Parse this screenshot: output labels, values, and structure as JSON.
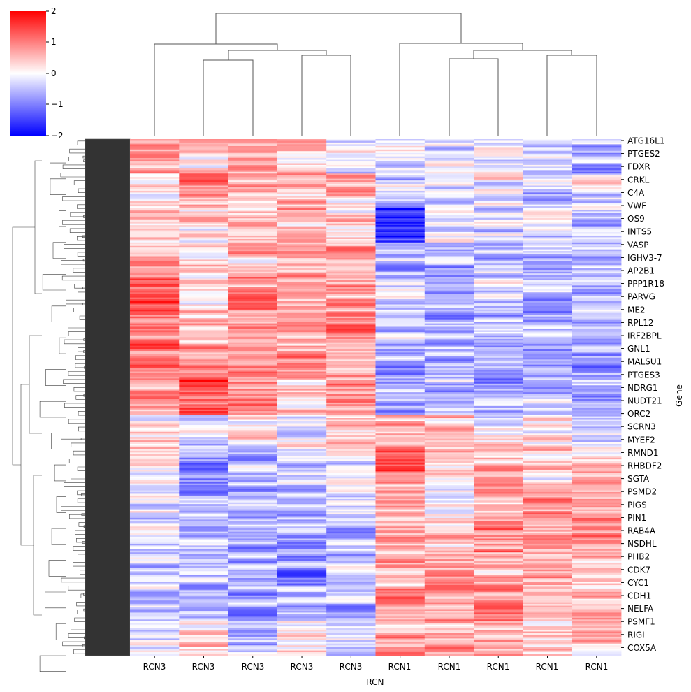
{
  "chart_data": {
    "type": "heatmap",
    "title": "",
    "xlabel": "RCN",
    "ylabel": "Gene",
    "columns": [
      "RCN3",
      "RCN3",
      "RCN3",
      "RCN3",
      "RCN3",
      "RCN1",
      "RCN1",
      "RCN1",
      "RCN1",
      "RCN1"
    ],
    "row_labels": [
      "ATG16L1",
      "PTGES2",
      "FDXR",
      "CRKL",
      "C4A",
      "VWF",
      "OS9",
      "INTS5",
      "VASP",
      "IGHV3-7",
      "AP2B1",
      "PPP1R18",
      "PARVG",
      "ME2",
      "RPL12",
      "IRF2BPL",
      "GNL1",
      "MALSU1",
      "PTGES3",
      "NDRG1",
      "NUDT21",
      "ORC2",
      "SCRN3",
      "MYEF2",
      "RMND1",
      "RHBDF2",
      "SGTA",
      "PSMD2",
      "PIGS",
      "PIN1",
      "RAB4A",
      "NSDHL",
      "PHB2",
      "CDK7",
      "CYC1",
      "CDH1",
      "NELFA",
      "PSMF1",
      "RIGI",
      "COX5A"
    ],
    "color_range": [
      -2,
      2
    ],
    "colormap": "bwr",
    "colorbar_ticks": [
      "2",
      "1",
      "0",
      "−1",
      "−2"
    ],
    "block_means": [
      [
        0.6,
        0.4,
        0.5,
        0.2,
        -0.2,
        -0.1,
        -0.3,
        -0.3,
        -0.4,
        -0.8
      ],
      [
        0.1,
        0.7,
        0.5,
        0.4,
        0.6,
        -0.3,
        -0.2,
        -0.1,
        -0.6,
        -0.2
      ],
      [
        0.4,
        0.3,
        0.4,
        0.6,
        0.5,
        -1.5,
        -0.3,
        -0.2,
        -0.4,
        -0.6
      ],
      [
        0.8,
        0.5,
        0.5,
        0.7,
        0.9,
        -0.5,
        -0.6,
        -0.5,
        -0.6,
        -0.7
      ],
      [
        1.2,
        0.4,
        0.8,
        0.6,
        0.7,
        -0.4,
        -0.5,
        -0.4,
        -0.5,
        -0.6
      ],
      [
        1.0,
        0.5,
        1.0,
        0.7,
        0.8,
        -0.5,
        -0.7,
        -0.6,
        -0.7,
        -0.6
      ],
      [
        1.0,
        0.7,
        0.9,
        0.8,
        0.7,
        -0.7,
        -0.5,
        -0.7,
        -0.8,
        -0.6
      ],
      [
        0.8,
        1.4,
        1.1,
        0.5,
        0.9,
        -0.6,
        -0.5,
        -0.6,
        -0.5,
        -0.5
      ],
      [
        0.3,
        -0.3,
        0.2,
        -0.2,
        0.4,
        0.8,
        0.3,
        0.1,
        0.0,
        -0.2
      ],
      [
        0.2,
        -0.8,
        -0.3,
        -0.4,
        -0.2,
        1.0,
        0.4,
        0.6,
        0.2,
        0.3
      ],
      [
        -0.3,
        -0.6,
        -0.5,
        -0.6,
        -0.3,
        0.6,
        0.2,
        0.5,
        0.8,
        0.6
      ],
      [
        -0.4,
        -0.5,
        -0.6,
        -0.7,
        -0.5,
        0.7,
        0.4,
        0.9,
        0.6,
        1.0
      ],
      [
        -0.5,
        -0.6,
        -0.7,
        -0.8,
        -0.6,
        0.6,
        0.6,
        0.5,
        0.5,
        0.5
      ],
      [
        -0.3,
        -0.5,
        -0.6,
        -0.5,
        -0.5,
        1.1,
        0.8,
        0.9,
        0.6,
        0.4
      ],
      [
        -0.2,
        0.1,
        -0.4,
        0.2,
        -0.3,
        0.6,
        0.7,
        0.6,
        0.4,
        0.4
      ]
    ],
    "row_dendrogram": "left",
    "column_dendrogram": "top"
  }
}
